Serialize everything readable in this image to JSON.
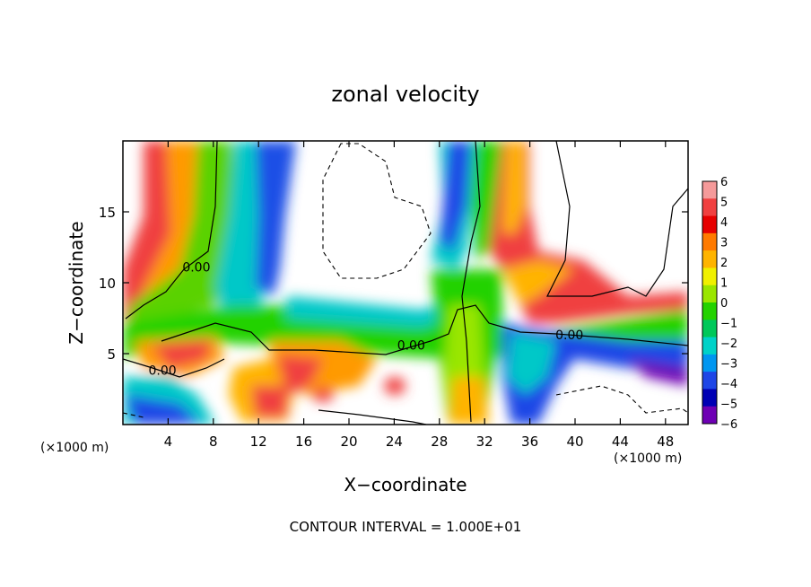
{
  "chart_data": {
    "type": "heatmap",
    "title": "zonal velocity",
    "xlabel": "X−coordinate",
    "ylabel": "Z−coordinate",
    "x_unit_label": "(×1000 m)",
    "x_unit_label_right": "(×1000 m)",
    "xlim": [
      0,
      50
    ],
    "ylim": [
      0,
      20
    ],
    "x_ticks": [
      4,
      8,
      12,
      16,
      20,
      24,
      28,
      32,
      36,
      40,
      44,
      48
    ],
    "y_ticks": [
      5,
      10,
      15
    ],
    "colorbar": {
      "ticks": [
        6,
        5,
        4,
        3,
        2,
        1,
        0,
        -1,
        -2,
        -3,
        -4,
        -5,
        -6
      ],
      "colors": [
        "#f59a9a",
        "#f04040",
        "#e60000",
        "#ff7a00",
        "#ffb400",
        "#f0f000",
        "#9ae600",
        "#24d200",
        "#00c85a",
        "#00d2c8",
        "#0096f0",
        "#1e46e6",
        "#0000b4",
        "#6e00b4"
      ]
    },
    "contour_labels": [
      {
        "text": "0.00",
        "x": 6.5,
        "z": 10.8
      },
      {
        "text": "0.00",
        "x": 3.5,
        "z": 3.5
      },
      {
        "text": "0.00",
        "x": 25.5,
        "z": 5.3
      },
      {
        "text": "0.00",
        "x": 39.5,
        "z": 6.0
      }
    ],
    "footer": "CONTOUR INTERVAL = 1.000E+01"
  }
}
